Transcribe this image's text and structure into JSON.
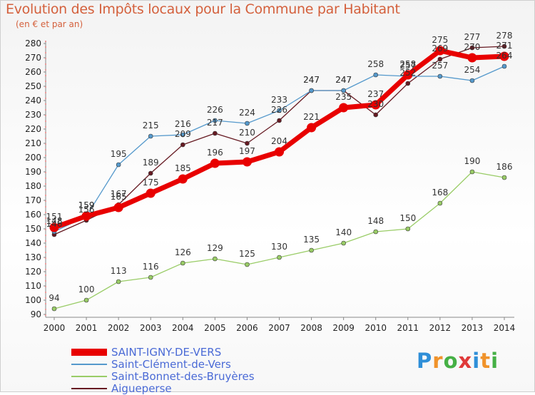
{
  "title": "Evolution des Impôts locaux pour la Commune par Habitant",
  "subtitle": "(en € et par an)",
  "logo": {
    "letters": [
      "P",
      "r",
      "o",
      "x",
      "i",
      "t",
      "i"
    ],
    "colors": [
      "#2f8fd8",
      "#f0932b",
      "#45b045",
      "#e03a3a",
      "#2f8fd8",
      "#f0932b",
      "#45b045"
    ]
  },
  "chart_data": {
    "type": "line",
    "x": [
      2000,
      2001,
      2002,
      2003,
      2004,
      2005,
      2006,
      2007,
      2008,
      2009,
      2010,
      2011,
      2012,
      2013,
      2014
    ],
    "ylim": [
      90,
      280
    ],
    "yticks": [
      90,
      100,
      110,
      120,
      130,
      140,
      150,
      160,
      170,
      180,
      190,
      200,
      210,
      220,
      230,
      240,
      250,
      260,
      270,
      280
    ],
    "grid": false,
    "legend_position": "bottom-left",
    "series": [
      {
        "name": "SAINT-IGNY-DE-VERS",
        "color": "#e80000",
        "values": [
          151,
          159,
          165,
          175,
          185,
          196,
          197,
          204,
          221,
          235,
          237,
          258,
          275,
          270,
          271
        ]
      },
      {
        "name": "Saint-Clément-de-Vers",
        "color": "#5599cc",
        "values": [
          148,
          159,
          195,
          215,
          216,
          226,
          224,
          233,
          247,
          247,
          258,
          257,
          257,
          254,
          264
        ]
      },
      {
        "name": "Saint-Bonnet-des-Bruyères",
        "color": "#99cc66",
        "values": [
          94,
          100,
          113,
          116,
          126,
          129,
          125,
          130,
          135,
          140,
          148,
          150,
          168,
          190,
          186
        ]
      },
      {
        "name": "Aigueperse",
        "color": "#661a22",
        "values": [
          146,
          156,
          167,
          189,
          209,
          217,
          210,
          226,
          247,
          247,
          230,
          252,
          269,
          277,
          278
        ]
      }
    ]
  }
}
